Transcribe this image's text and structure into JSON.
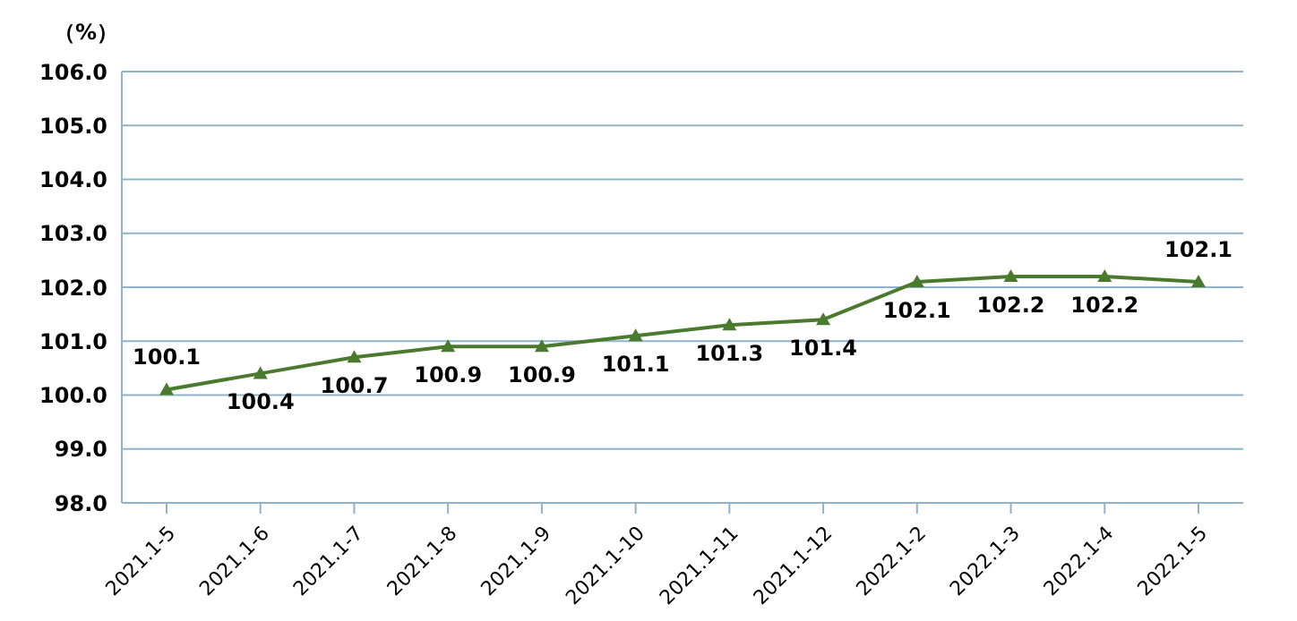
{
  "chart_data": {
    "type": "line",
    "ylabel": "（%）",
    "categories": [
      "2021.1-5",
      "2021.1-6",
      "2021.1-7",
      "2021.1-8",
      "2021.1-9",
      "2021.1-10",
      "2021.1-11",
      "2021.1-12",
      "2022.1-2",
      "2022.1-3",
      "2022.1-4",
      "2022.1-5"
    ],
    "series": [
      {
        "color": "#4a7a2e",
        "values": [
          100.1,
          100.4,
          100.7,
          100.9,
          100.9,
          101.1,
          101.3,
          101.4,
          102.1,
          102.2,
          102.2,
          102.1
        ]
      }
    ],
    "ylim": [
      98,
      106
    ],
    "yticks": [
      {
        "value": 98,
        "label": "98.0"
      },
      {
        "value": 99,
        "label": "99.0"
      },
      {
        "value": 100,
        "label": "100.0"
      },
      {
        "value": 101,
        "label": "101.0"
      },
      {
        "value": 102,
        "label": "102.0"
      },
      {
        "value": 103,
        "label": "103.0"
      },
      {
        "value": 104,
        "label": "104.0"
      },
      {
        "value": 105,
        "label": "105.0"
      },
      {
        "value": 106,
        "label": "106.0"
      }
    ],
    "grid": "y",
    "marker": "triangle",
    "line_style": "solid",
    "data_labels": true
  }
}
